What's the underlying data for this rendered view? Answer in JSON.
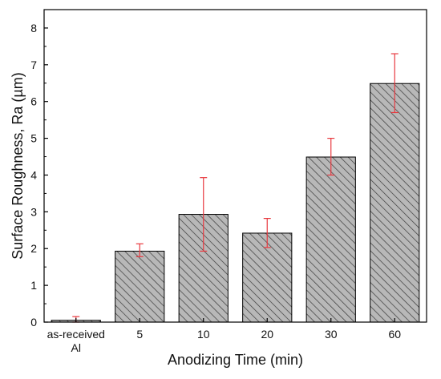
{
  "chart_data": {
    "type": "bar",
    "categories": [
      "as-received Al",
      "5",
      "10",
      "20",
      "30",
      "60"
    ],
    "category_lines": [
      [
        "as-received",
        "Al"
      ],
      [
        "5"
      ],
      [
        "10"
      ],
      [
        "20"
      ],
      [
        "30"
      ],
      [
        "60"
      ]
    ],
    "values": [
      0.05,
      1.93,
      2.93,
      2.42,
      4.49,
      6.49
    ],
    "error_upper": [
      0.15,
      2.13,
      3.93,
      2.82,
      5.0,
      7.3
    ],
    "error_lower": [
      0.0,
      1.78,
      1.93,
      2.03,
      4.0,
      5.7
    ],
    "xlabel": "Anodizing Time (min)",
    "ylabel": "Surface Roughness, Ra (µm)",
    "ylim": [
      0,
      8.5
    ],
    "yticks": [
      "0",
      "1",
      "2",
      "3",
      "4",
      "5",
      "6",
      "7",
      "8"
    ],
    "bar_fill": "hatched",
    "colors": {
      "bar_fill": "#b8b8b8",
      "hatch": "#3a3a3a",
      "bar_stroke": "#000000",
      "error_bar": "#e8393f",
      "axis": "#000000"
    },
    "grid": false,
    "legend": "none"
  }
}
